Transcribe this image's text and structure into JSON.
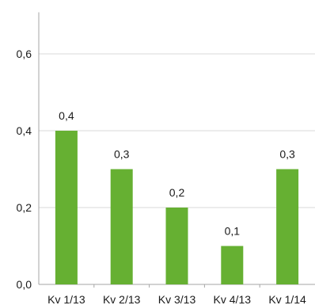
{
  "chart_data": {
    "type": "bar",
    "categories": [
      "Kv 1/13",
      "Kv 2/13",
      "Kv 3/13",
      "Kv 4/13",
      "Kv 1/14"
    ],
    "values": [
      0.4,
      0.3,
      0.2,
      0.1,
      0.3
    ],
    "data_labels": [
      "0,4",
      "0,3",
      "0,2",
      "0,1",
      "0,3"
    ],
    "title": "",
    "xlabel": "",
    "ylabel": "",
    "ylim": [
      0,
      0.7
    ],
    "y_ticks": [
      0,
      0.2,
      0.4,
      0.6
    ],
    "y_tick_labels": [
      "0,0",
      "0,2",
      "0,4",
      "0,6"
    ],
    "grid": true,
    "bar_color": "#66b032",
    "grid_color": "#d9d9d9",
    "axis_color": "#a6a6a6"
  }
}
